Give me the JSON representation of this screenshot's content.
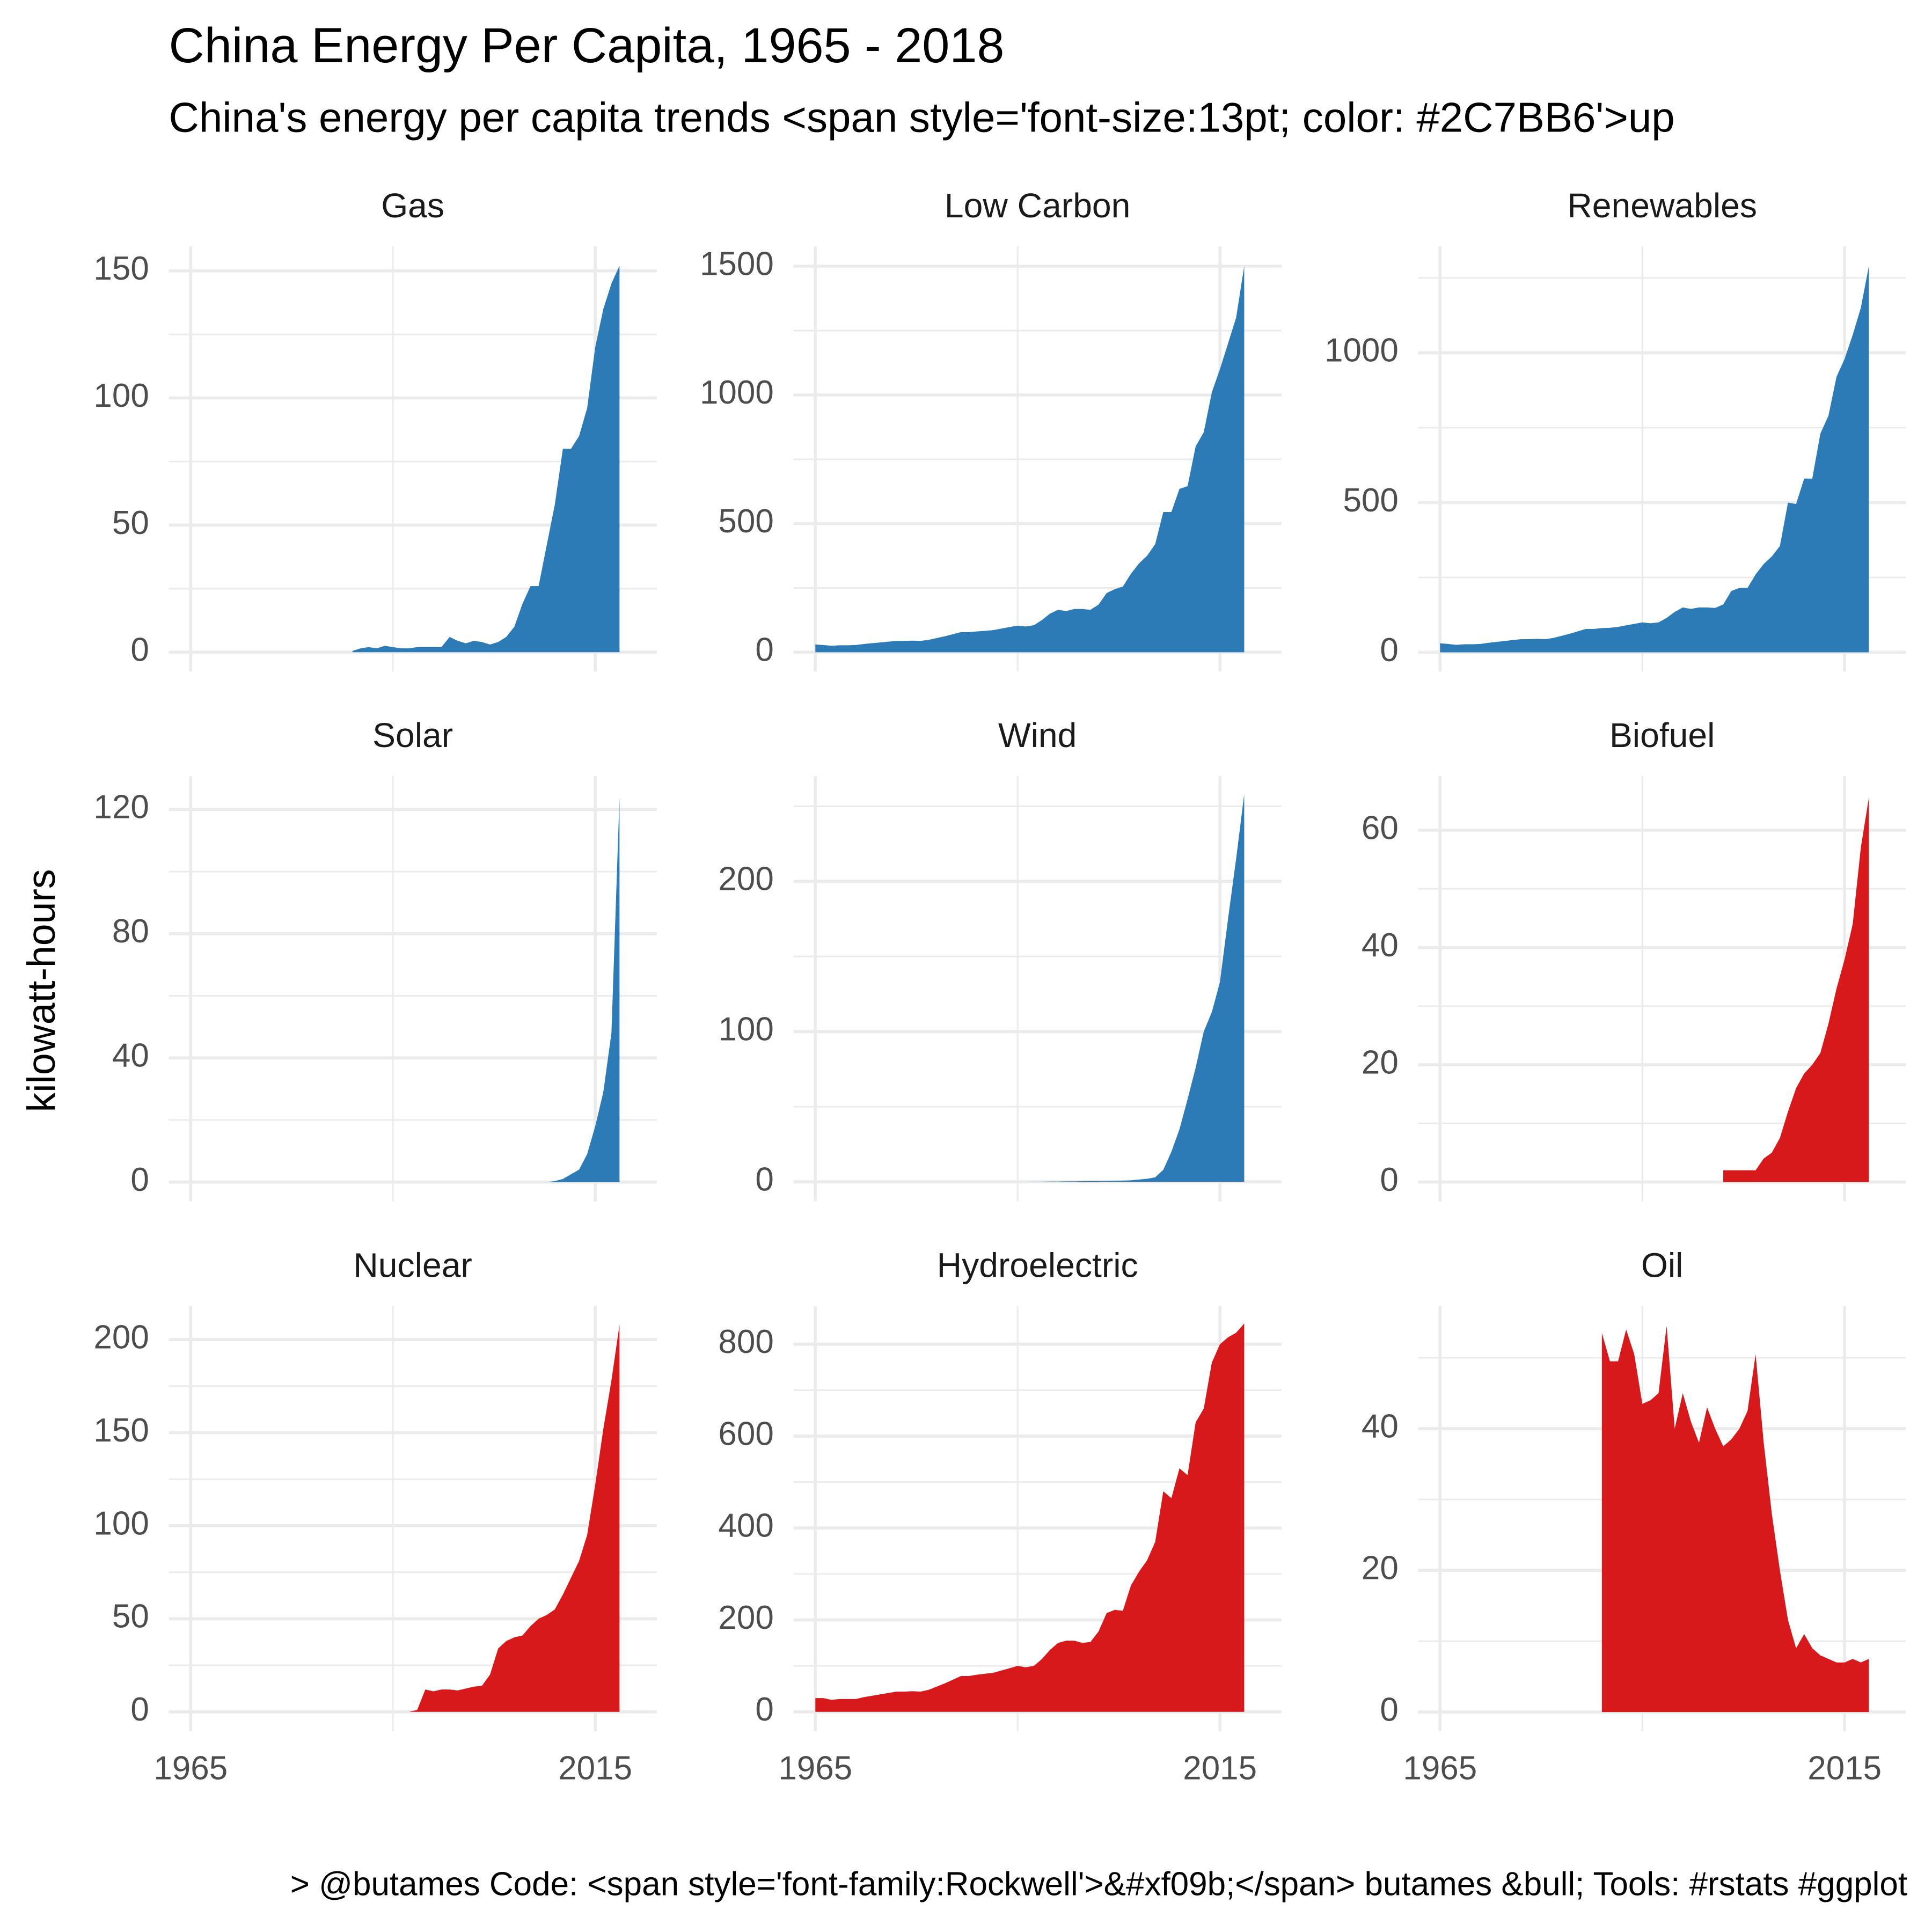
{
  "chart_data": {
    "type": "area",
    "title": "China Energy Per Capita, 1965 - 2018",
    "subtitle": "China's energy per capita trends <span style='font-size:13pt; color: #2C7BB6'>up",
    "ylabel": "kilowatt-hours",
    "caption": "> @butames Code: <span style='font-family:Rockwell'>&#xf09b;</span> butames &bull; Tools: #rstats #ggplot",
    "grid": true,
    "x": [
      1965,
      1966,
      1967,
      1968,
      1969,
      1970,
      1971,
      1972,
      1973,
      1974,
      1975,
      1976,
      1977,
      1978,
      1979,
      1980,
      1981,
      1982,
      1983,
      1984,
      1985,
      1986,
      1987,
      1988,
      1989,
      1990,
      1991,
      1992,
      1993,
      1994,
      1995,
      1996,
      1997,
      1998,
      1999,
      2000,
      2001,
      2002,
      2003,
      2004,
      2005,
      2006,
      2007,
      2008,
      2009,
      2010,
      2011,
      2012,
      2013,
      2014,
      2015,
      2016,
      2017,
      2018
    ],
    "xlim": [
      1962.3,
      2022.6
    ],
    "xticks": [
      1965,
      2015
    ],
    "panels": [
      {
        "title": "Gas",
        "color": "#2C7BB6",
        "ylim": [
          -7.6,
          159.6
        ],
        "yticks": [
          0,
          50,
          100,
          150
        ],
        "values": [
          null,
          null,
          null,
          null,
          null,
          null,
          null,
          null,
          null,
          null,
          null,
          null,
          null,
          null,
          null,
          null,
          null,
          null,
          null,
          null,
          0.5,
          1.5,
          2,
          1.5,
          2.5,
          2,
          1.5,
          1.5,
          2,
          2,
          2,
          2,
          6,
          4.5,
          3.5,
          4.5,
          4,
          3,
          4,
          6,
          10,
          19,
          26,
          26,
          42,
          58,
          80,
          80,
          85,
          96,
          120,
          135,
          145,
          152
        ]
      },
      {
        "title": "Low Carbon",
        "color": "#2C7BB6",
        "ylim": [
          -75,
          1577
        ],
        "yticks": [
          0,
          500,
          1000,
          1500
        ],
        "values": [
          30,
          28,
          25,
          27,
          27,
          28,
          32,
          35,
          38,
          41,
          44,
          44,
          45,
          44,
          48,
          55,
          62,
          70,
          78,
          78,
          81,
          83,
          86,
          92,
          98,
          103,
          100,
          105,
          125,
          150,
          165,
          160,
          168,
          168,
          165,
          185,
          230,
          245,
          255,
          305,
          345,
          375,
          420,
          545,
          545,
          635,
          645,
          800,
          855,
          1010,
          1100,
          1200,
          1300,
          1500
        ]
      },
      {
        "title": "Renewables",
        "color": "#2C7BB6",
        "ylim": [
          -64,
          1355
        ],
        "yticks": [
          0,
          500,
          1000
        ],
        "values": [
          30,
          28,
          25,
          27,
          27,
          28,
          32,
          35,
          38,
          41,
          44,
          44,
          45,
          44,
          48,
          55,
          62,
          70,
          78,
          78,
          81,
          82,
          85,
          90,
          95,
          100,
          97,
          100,
          115,
          135,
          150,
          145,
          150,
          150,
          148,
          160,
          205,
          215,
          215,
          260,
          295,
          320,
          355,
          500,
          495,
          580,
          580,
          730,
          790,
          920,
          980,
          1060,
          1150,
          1290
        ]
      },
      {
        "title": "Solar",
        "color": "#2C7BB6",
        "ylim": [
          -6.2,
          130.7
        ],
        "yticks": [
          0,
          40,
          80,
          120
        ],
        "values": [
          0,
          0,
          0,
          0,
          0,
          0,
          0,
          0,
          0,
          0,
          0,
          0,
          0,
          0,
          0,
          0,
          0,
          0,
          0,
          0,
          0,
          0,
          0,
          0,
          0,
          0,
          0,
          0,
          0,
          0,
          0,
          0,
          0,
          0,
          0,
          0,
          0,
          0,
          0,
          0,
          0,
          0,
          0,
          0,
          0,
          0.3,
          1,
          2.5,
          4,
          9,
          18,
          29,
          48,
          124
        ]
      },
      {
        "title": "Wind",
        "color": "#2C7BB6",
        "ylim": [
          -13,
          270
        ],
        "yticks": [
          0,
          100,
          200
        ],
        "values": [
          null,
          null,
          null,
          null,
          null,
          null,
          null,
          null,
          null,
          null,
          null,
          null,
          null,
          null,
          null,
          null,
          null,
          null,
          null,
          null,
          null,
          null,
          null,
          null,
          null,
          0,
          0,
          0.1,
          0.1,
          0.2,
          0.2,
          0.3,
          0.3,
          0.4,
          0.5,
          0.5,
          0.6,
          0.7,
          0.8,
          1,
          1.5,
          2,
          3,
          8,
          20,
          35,
          55,
          76,
          100,
          113,
          133,
          175,
          215,
          258
        ]
      },
      {
        "title": "Biofuel",
        "color": "#D7191C",
        "ylim": [
          -3.3,
          69.2
        ],
        "yticks": [
          0,
          20,
          40,
          60
        ],
        "values": [
          null,
          null,
          null,
          null,
          null,
          null,
          null,
          null,
          null,
          null,
          null,
          null,
          null,
          null,
          null,
          null,
          null,
          null,
          null,
          null,
          null,
          null,
          null,
          null,
          null,
          null,
          null,
          null,
          null,
          null,
          null,
          null,
          null,
          null,
          null,
          2,
          2,
          2,
          2,
          2,
          4,
          5,
          7.5,
          12,
          16,
          18.5,
          20,
          22,
          27,
          33,
          38,
          44,
          57,
          65.6
        ]
      },
      {
        "title": "Nuclear",
        "color": "#D7191C",
        "ylim": [
          -10.4,
          218
        ],
        "yticks": [
          0,
          50,
          100,
          150,
          200
        ],
        "values": [
          null,
          null,
          null,
          null,
          null,
          null,
          null,
          null,
          null,
          null,
          null,
          null,
          null,
          null,
          null,
          null,
          null,
          null,
          null,
          null,
          null,
          null,
          null,
          null,
          null,
          null,
          null,
          0,
          1,
          12,
          11,
          12,
          12,
          11.5,
          12.5,
          13.5,
          14,
          20,
          34,
          38,
          40,
          41,
          46,
          50,
          52,
          55,
          63,
          72,
          81,
          95,
          122,
          152,
          178,
          208
        ]
      },
      {
        "title": "Hydroelectric",
        "color": "#D7191C",
        "ylim": [
          -42,
          883
        ],
        "yticks": [
          0,
          200,
          400,
          600,
          800
        ],
        "values": [
          30,
          30,
          26,
          28,
          28,
          28,
          32,
          35,
          38,
          41,
          44,
          44,
          45,
          44,
          48,
          55,
          62,
          70,
          78,
          78,
          81,
          83,
          85,
          90,
          95,
          100,
          97,
          100,
          115,
          135,
          150,
          155,
          155,
          150,
          152,
          175,
          215,
          222,
          220,
          275,
          305,
          330,
          370,
          480,
          465,
          530,
          515,
          630,
          660,
          760,
          800,
          815,
          825,
          845
        ]
      },
      {
        "title": "Oil",
        "color": "#D7191C",
        "ylim": [
          -2.7,
          57.3
        ],
        "yticks": [
          0,
          20,
          40
        ],
        "values": [
          null,
          null,
          null,
          null,
          null,
          null,
          null,
          null,
          null,
          null,
          null,
          null,
          null,
          null,
          null,
          null,
          null,
          null,
          null,
          null,
          53.5,
          49.5,
          49.5,
          54,
          50.5,
          43.5,
          44,
          45,
          54.5,
          40,
          45,
          41,
          38,
          43,
          40,
          37.5,
          38.5,
          40,
          42.5,
          50.5,
          38,
          28,
          20,
          13,
          9,
          11,
          9,
          8,
          7.5,
          7,
          7,
          7.5,
          7,
          7.5
        ]
      }
    ]
  }
}
